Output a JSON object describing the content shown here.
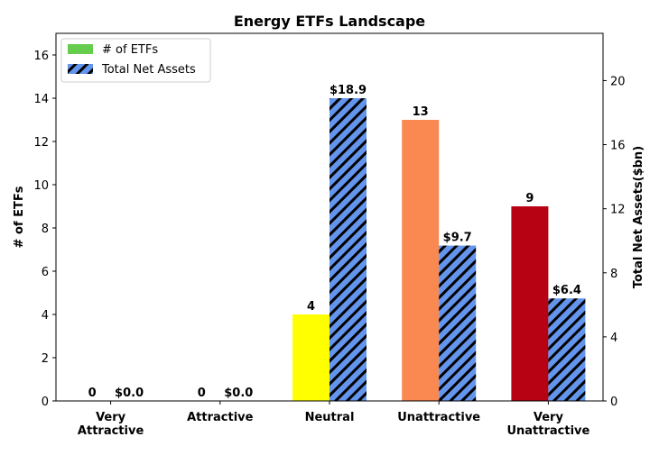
{
  "chart_data": {
    "type": "bar",
    "title": "Energy ETFs Landscape",
    "categories": [
      [
        "Very",
        "Attractive"
      ],
      [
        "Attractive"
      ],
      [
        "Neutral"
      ],
      [
        "Unattractive"
      ],
      [
        "Very",
        "Unattractive"
      ]
    ],
    "series": [
      {
        "name": "# of ETFs",
        "axis": "left",
        "values": [
          0,
          0,
          4,
          13,
          9
        ],
        "labels": [
          "0",
          "0",
          "4",
          "13",
          "9"
        ],
        "colors": [
          "#ffffff",
          "#ffffff",
          "#ffff00",
          "#f98851",
          "#b70213"
        ],
        "legend_color": "#66cc4d"
      },
      {
        "name": "Total Net Assets",
        "axis": "right",
        "values": [
          0.0,
          0.0,
          18.9,
          9.7,
          6.4
        ],
        "labels": [
          "$0.0",
          "$0.0",
          "$18.9",
          "$9.7",
          "$6.4"
        ],
        "color": "#6495ed",
        "hatch": "diagonal"
      }
    ],
    "ylabel_left": "# of ETFs",
    "ylabel_right": "Total Net Assets($bn)",
    "ylim_left": [
      0,
      17
    ],
    "ylim_right": [
      0,
      22.95
    ],
    "yticks_left": [
      0,
      2,
      4,
      6,
      8,
      10,
      12,
      14,
      16
    ],
    "yticks_right": [
      0,
      4,
      8,
      12,
      16,
      20
    ],
    "legend_position": "top-left",
    "grid": false
  }
}
